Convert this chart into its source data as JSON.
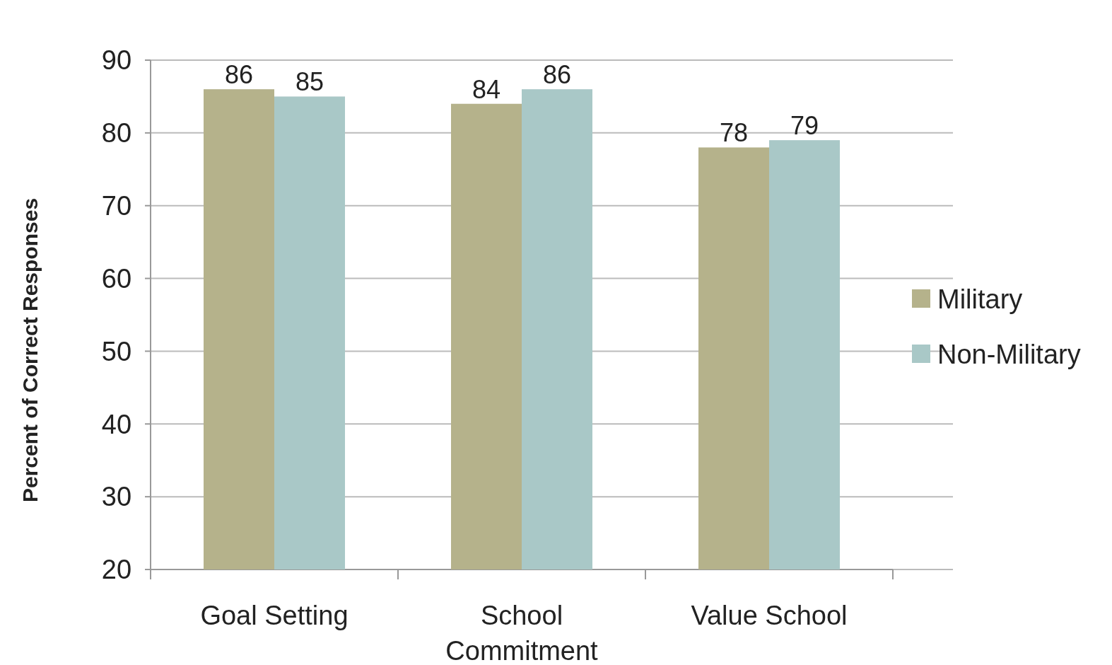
{
  "chart_data": {
    "type": "bar",
    "ylabel": "Percent of Correct Responses",
    "categories": [
      "Goal Setting",
      "School Commitment",
      "Value School"
    ],
    "series": [
      {
        "name": "Military",
        "color": "#b5b28b",
        "values": [
          86,
          84,
          78
        ]
      },
      {
        "name": "Non-Military",
        "color": "#a9c8c7",
        "values": [
          85,
          86,
          79
        ]
      }
    ],
    "ylim": [
      20,
      90
    ],
    "yticks": [
      20,
      30,
      40,
      50,
      60,
      70,
      80,
      90
    ],
    "grid": "y",
    "legend": "right",
    "data_labels": true
  }
}
